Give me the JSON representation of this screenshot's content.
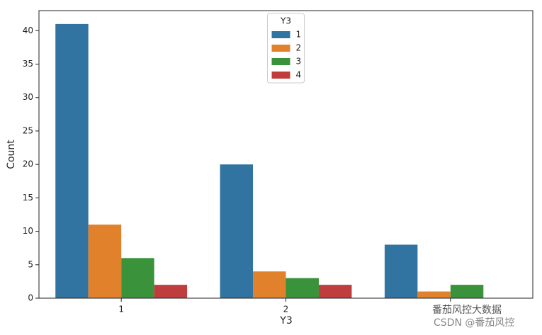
{
  "chart_data": {
    "type": "bar",
    "x_label": "Y3",
    "y_label": "Count",
    "categories": [
      "1",
      "2",
      null
    ],
    "series": [
      {
        "name": "1",
        "color": "#3274a1",
        "values": [
          41,
          20,
          8
        ]
      },
      {
        "name": "2",
        "color": "#e1812c",
        "values": [
          11,
          4,
          1
        ]
      },
      {
        "name": "3",
        "color": "#3a923a",
        "values": [
          6,
          3,
          2
        ]
      },
      {
        "name": "4",
        "color": "#c03d3e",
        "values": [
          2,
          2,
          0
        ]
      }
    ],
    "legend_title": "Y3",
    "legend": "upper center",
    "ylim": [
      0,
      43
    ],
    "yticks": [
      0,
      5,
      10,
      15,
      20,
      25,
      30,
      35,
      40
    ],
    "grid": false,
    "watermark": [
      "番茄风控大数据",
      "CSDN @番茄风控"
    ]
  }
}
